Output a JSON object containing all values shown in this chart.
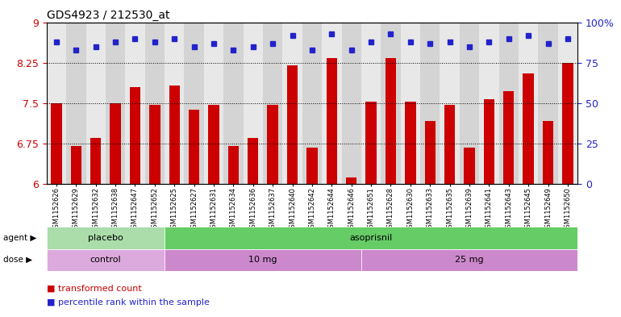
{
  "title": "GDS4923 / 212530_at",
  "samples": [
    "GSM1152626",
    "GSM1152629",
    "GSM1152632",
    "GSM1152638",
    "GSM1152647",
    "GSM1152652",
    "GSM1152625",
    "GSM1152627",
    "GSM1152631",
    "GSM1152634",
    "GSM1152636",
    "GSM1152637",
    "GSM1152640",
    "GSM1152642",
    "GSM1152644",
    "GSM1152646",
    "GSM1152651",
    "GSM1152628",
    "GSM1152630",
    "GSM1152633",
    "GSM1152635",
    "GSM1152639",
    "GSM1152641",
    "GSM1152643",
    "GSM1152645",
    "GSM1152649",
    "GSM1152650"
  ],
  "bar_values": [
    7.5,
    6.7,
    6.85,
    7.5,
    7.8,
    7.47,
    7.83,
    7.37,
    7.47,
    6.7,
    6.85,
    7.47,
    8.2,
    6.68,
    8.33,
    6.12,
    7.52,
    8.33,
    7.52,
    7.17,
    7.47,
    6.68,
    7.57,
    7.72,
    8.05,
    7.17,
    8.25
  ],
  "percentile_values": [
    88,
    83,
    85,
    88,
    90,
    88,
    90,
    85,
    87,
    83,
    85,
    87,
    92,
    83,
    93,
    83,
    88,
    93,
    88,
    87,
    88,
    85,
    88,
    90,
    92,
    87,
    90
  ],
  "ylim_left": [
    6,
    9
  ],
  "ylim_right": [
    0,
    100
  ],
  "yticks_left": [
    6,
    6.75,
    7.5,
    8.25,
    9
  ],
  "yticks_right": [
    0,
    25,
    50,
    75,
    100
  ],
  "bar_color": "#cc0000",
  "dot_color": "#2222cc",
  "agent_groups": [
    {
      "label": "placebo",
      "start": 0,
      "end": 6,
      "color": "#aaddaa"
    },
    {
      "label": "asoprisnil",
      "start": 6,
      "end": 27,
      "color": "#66cc66"
    }
  ],
  "dose_groups": [
    {
      "label": "control",
      "start": 0,
      "end": 6,
      "color": "#ddaadd"
    },
    {
      "label": "10 mg",
      "start": 6,
      "end": 16,
      "color": "#cc88cc"
    },
    {
      "label": "25 mg",
      "start": 16,
      "end": 27,
      "color": "#cc88cc"
    }
  ],
  "legend_items": [
    {
      "label": "transformed count",
      "color": "#cc0000"
    },
    {
      "label": "percentile rank within the sample",
      "color": "#2222cc"
    }
  ],
  "col_bg_even": "#e8e8e8",
  "col_bg_odd": "#d4d4d4",
  "plot_bg": "#e0e0e0"
}
